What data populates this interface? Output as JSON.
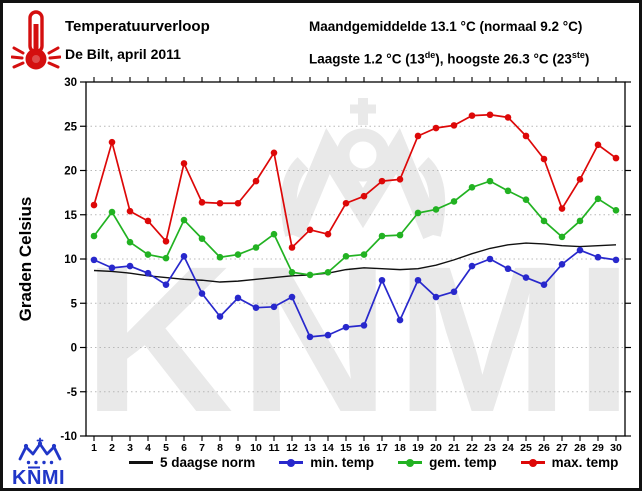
{
  "header": {
    "title": "Temperatuurverloop",
    "subtitle": "De Bilt, april 2011",
    "stats_line1": "Maandgemiddelde 13.1 °C (normaal 9.2 °C)",
    "stats_line2": {
      "p1": "Laagste 1.2 °C (13",
      "sup1": "de",
      "p2": "), hoogste 26.3 °C (23",
      "sup2": "ste",
      "p3": ")"
    }
  },
  "watermark": {
    "text": "KNMI"
  },
  "logo": {
    "text": "KNMI",
    "color": "#2036c8"
  },
  "colors": {
    "norm_line": "#111111",
    "min_temp": "#2828cc",
    "gem_temp": "#22b222",
    "max_temp": "#dd0808",
    "gridline": "#b8b8b8",
    "watermark": "#e9e9e9"
  },
  "chart_data": {
    "type": "line",
    "x_days": [
      1,
      2,
      3,
      4,
      5,
      6,
      7,
      8,
      9,
      10,
      11,
      12,
      13,
      14,
      15,
      16,
      17,
      18,
      19,
      20,
      21,
      22,
      23,
      24,
      25,
      26,
      27,
      28,
      29,
      30
    ],
    "ylabel": "Graden Celsius",
    "ylim": [
      -10,
      30
    ],
    "yticks": [
      30,
      25,
      20,
      15,
      10,
      5,
      0,
      -5,
      -10
    ],
    "grid": "horizontal-dotted",
    "legend_position": "bottom",
    "series": [
      {
        "name": "5 daagse norm",
        "color": "#111111",
        "marker": false,
        "values": [
          8.7,
          8.6,
          8.4,
          8.1,
          7.9,
          7.7,
          7.6,
          7.4,
          7.5,
          7.7,
          7.9,
          8.1,
          8.2,
          8.4,
          8.8,
          9.0,
          8.9,
          8.8,
          8.9,
          9.3,
          9.9,
          10.6,
          11.2,
          11.6,
          11.8,
          11.7,
          11.5,
          11.4,
          11.5,
          11.6
        ]
      },
      {
        "name": "min. temp",
        "color": "#2828cc",
        "marker": true,
        "values": [
          9.9,
          9.0,
          9.2,
          8.4,
          7.1,
          10.3,
          6.1,
          3.5,
          5.6,
          4.5,
          4.6,
          5.7,
          1.2,
          1.4,
          2.3,
          2.5,
          7.6,
          3.1,
          7.6,
          5.7,
          6.3,
          9.2,
          10.0,
          8.9,
          7.9,
          7.1,
          9.4,
          11.0,
          10.2,
          9.9
        ]
      },
      {
        "name": "gem. temp",
        "color": "#22b222",
        "marker": true,
        "values": [
          12.6,
          15.3,
          11.9,
          10.5,
          10.1,
          14.4,
          12.3,
          10.2,
          10.5,
          11.3,
          12.8,
          8.5,
          8.2,
          8.5,
          10.3,
          10.5,
          12.6,
          12.7,
          15.2,
          15.6,
          16.5,
          18.1,
          18.8,
          17.7,
          16.7,
          14.3,
          12.5,
          14.3,
          16.8,
          15.5
        ]
      },
      {
        "name": "max. temp",
        "color": "#dd0808",
        "marker": true,
        "values": [
          16.1,
          23.2,
          15.4,
          14.3,
          12.0,
          20.8,
          16.4,
          16.3,
          16.3,
          18.8,
          22.0,
          11.3,
          13.3,
          12.8,
          16.3,
          17.1,
          18.8,
          19.0,
          23.9,
          24.8,
          25.1,
          26.2,
          26.3,
          26.0,
          23.9,
          21.3,
          15.7,
          19.0,
          22.9,
          21.4
        ]
      }
    ]
  }
}
